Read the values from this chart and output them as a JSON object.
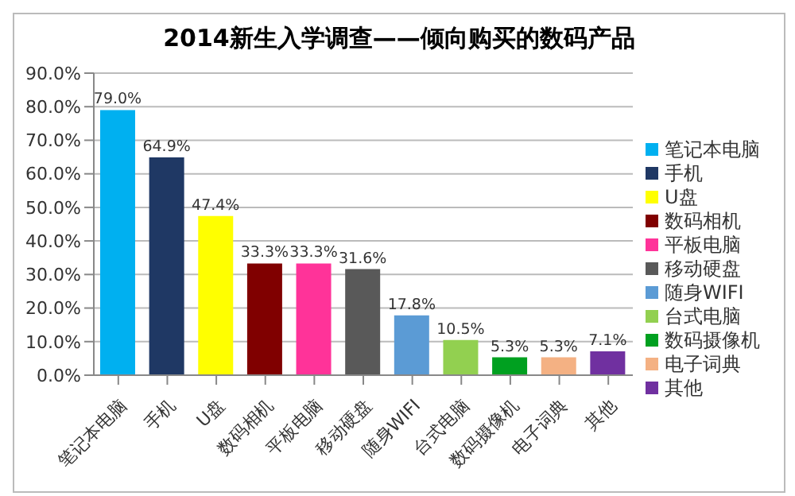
{
  "chart_data": {
    "type": "bar",
    "title": "2014新生入学调查——倾向购买的数码产品",
    "stacked": true,
    "categories": [
      "笔记本电脑",
      "手机",
      "U盘",
      "数码相机",
      "平板电脑",
      "移动硬盘",
      "随身WIFI",
      "台式电脑",
      "数码摄像机",
      "电子词典",
      "其他"
    ],
    "series": [
      {
        "name": "笔记本电脑",
        "color": "#00b0f0",
        "values": [
          79.0,
          null,
          null,
          null,
          null,
          null,
          null,
          null,
          null,
          null,
          null
        ],
        "value_labels": [
          "79.0%",
          null,
          null,
          null,
          null,
          null,
          null,
          null,
          null,
          null,
          null
        ]
      },
      {
        "name": "手机",
        "color": "#1f3864",
        "values": [
          null,
          64.9,
          null,
          null,
          null,
          null,
          null,
          null,
          null,
          null,
          null
        ],
        "value_labels": [
          null,
          "64.9%",
          null,
          null,
          null,
          null,
          null,
          null,
          null,
          null,
          null
        ]
      },
      {
        "name": "U盘",
        "color": "#ffff00",
        "values": [
          null,
          null,
          47.4,
          null,
          null,
          null,
          null,
          null,
          null,
          null,
          null
        ],
        "value_labels": [
          null,
          null,
          "47.4%",
          null,
          null,
          null,
          null,
          null,
          null,
          null,
          null
        ]
      },
      {
        "name": "数码相机",
        "color": "#800000",
        "values": [
          null,
          null,
          null,
          33.3,
          null,
          null,
          null,
          null,
          null,
          null,
          null
        ],
        "value_labels": [
          null,
          null,
          null,
          "33.3%",
          null,
          null,
          null,
          null,
          null,
          null,
          null
        ]
      },
      {
        "name": "平板电脑",
        "color": "#ff3399",
        "values": [
          null,
          null,
          null,
          null,
          33.3,
          null,
          null,
          null,
          null,
          null,
          null
        ],
        "value_labels": [
          null,
          null,
          null,
          null,
          "33.3%",
          null,
          null,
          null,
          null,
          null,
          null
        ]
      },
      {
        "name": "移动硬盘",
        "color": "#595959",
        "values": [
          null,
          null,
          null,
          null,
          null,
          31.6,
          null,
          null,
          null,
          null,
          null
        ],
        "value_labels": [
          null,
          null,
          null,
          null,
          null,
          "31.6%",
          null,
          null,
          null,
          null,
          null
        ]
      },
      {
        "name": "随身WIFI",
        "color": "#5b9bd5",
        "values": [
          null,
          null,
          null,
          null,
          null,
          null,
          17.8,
          null,
          null,
          null,
          null
        ],
        "value_labels": [
          null,
          null,
          null,
          null,
          null,
          null,
          "17.8%",
          null,
          null,
          null,
          null
        ]
      },
      {
        "name": "台式电脑",
        "color": "#92d050",
        "values": [
          null,
          null,
          null,
          null,
          null,
          null,
          null,
          10.5,
          null,
          null,
          null
        ],
        "value_labels": [
          null,
          null,
          null,
          null,
          null,
          null,
          null,
          "10.5%",
          null,
          null,
          null
        ]
      },
      {
        "name": "数码摄像机",
        "color": "#00a020",
        "values": [
          null,
          null,
          null,
          null,
          null,
          null,
          null,
          null,
          5.3,
          null,
          null
        ],
        "value_labels": [
          null,
          null,
          null,
          null,
          null,
          null,
          null,
          null,
          "5.3%",
          null,
          null
        ]
      },
      {
        "name": "电子词典",
        "color": "#f4b183",
        "values": [
          null,
          null,
          null,
          null,
          null,
          null,
          null,
          null,
          null,
          5.3,
          null
        ],
        "value_labels": [
          null,
          null,
          null,
          null,
          null,
          null,
          null,
          null,
          null,
          "5.3%",
          null
        ]
      },
      {
        "name": "其他",
        "color": "#7030a0",
        "values": [
          null,
          null,
          null,
          null,
          null,
          null,
          null,
          null,
          null,
          null,
          7.1
        ],
        "value_labels": [
          null,
          null,
          null,
          null,
          null,
          null,
          null,
          null,
          null,
          null,
          "7.1%"
        ]
      }
    ],
    "ylim": [
      0,
      90
    ],
    "yticks": [
      {
        "value": 0,
        "label": "0.0%"
      },
      {
        "value": 10,
        "label": "10.0%"
      },
      {
        "value": 20,
        "label": "20.0%"
      },
      {
        "value": 30,
        "label": "30.0%"
      },
      {
        "value": 40,
        "label": "40.0%"
      },
      {
        "value": 50,
        "label": "50.0%"
      },
      {
        "value": 60,
        "label": "60.0%"
      },
      {
        "value": 70,
        "label": "70.0%"
      },
      {
        "value": 80,
        "label": "80.0%"
      },
      {
        "value": 90,
        "label": "90.0%"
      }
    ],
    "grid": "y",
    "legend": "right"
  }
}
